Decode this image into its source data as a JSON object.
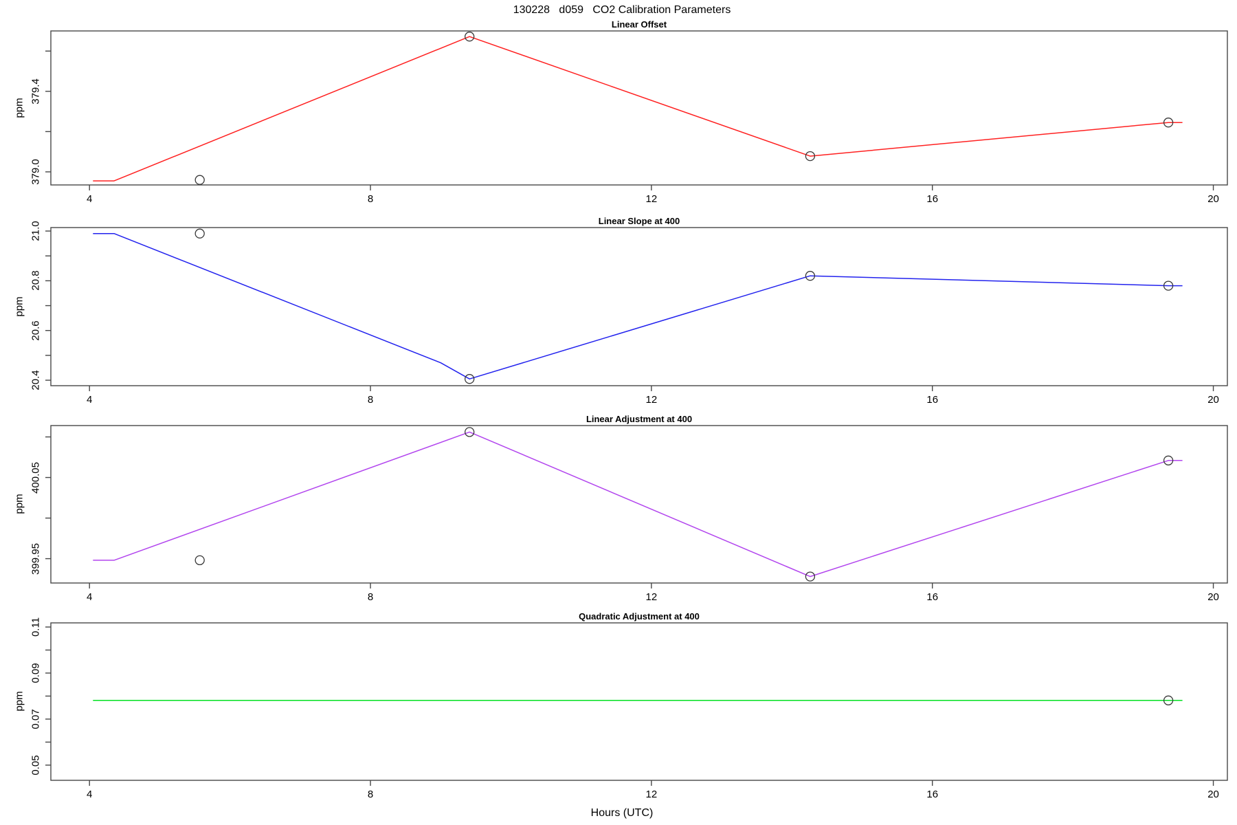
{
  "page_title": "130228   d059   CO2 Calibration Parameters",
  "chart_data": {
    "type": "line",
    "title": "130228   d059   CO2 Calibration Parameters",
    "xlabel": "Hours (UTC)",
    "x_ticks": [
      4,
      8,
      12,
      16,
      20
    ],
    "xlim": [
      3.45,
      20.2
    ],
    "grid": false,
    "legend": "none",
    "axis_color": "#474747",
    "point_color": "#383838",
    "panels": [
      {
        "title": "Linear Offset",
        "ylabel": "ppm",
        "color": "#ff2020",
        "ylim": [
          378.935,
          379.7
        ],
        "yticks": [
          {
            "value": 379.0,
            "label": "379.0"
          },
          {
            "value": 379.2,
            "label": ""
          },
          {
            "value": 379.4,
            "label": "379.4"
          },
          {
            "value": 379.6,
            "label": ""
          }
        ],
        "line": [
          [
            4.05,
            378.955
          ],
          [
            4.35,
            378.955
          ],
          [
            9.41,
            379.672
          ],
          [
            14.26,
            379.078
          ],
          [
            19.36,
            379.245
          ],
          [
            19.56,
            379.245
          ]
        ],
        "points": [
          [
            5.57,
            378.96
          ],
          [
            9.41,
            379.672
          ],
          [
            14.26,
            379.078
          ],
          [
            19.36,
            379.245
          ]
        ]
      },
      {
        "title": "Linear Slope at 400",
        "ylabel": "ppm",
        "color": "#2222ee",
        "ylim": [
          20.378,
          21.014
        ],
        "yticks": [
          {
            "value": 20.4,
            "label": "20.4"
          },
          {
            "value": 20.5,
            "label": ""
          },
          {
            "value": 20.6,
            "label": "20.6"
          },
          {
            "value": 20.7,
            "label": ""
          },
          {
            "value": 20.8,
            "label": "20.8"
          },
          {
            "value": 20.9,
            "label": ""
          },
          {
            "value": 21.0,
            "label": "21.0"
          }
        ],
        "line": [
          [
            4.05,
            20.99
          ],
          [
            4.35,
            20.99
          ],
          [
            9.0,
            20.47
          ],
          [
            9.41,
            20.405
          ],
          [
            14.26,
            20.82
          ],
          [
            19.36,
            20.78
          ],
          [
            19.56,
            20.78
          ]
        ],
        "points": [
          [
            5.57,
            20.99
          ],
          [
            9.41,
            20.405
          ],
          [
            14.26,
            20.82
          ],
          [
            19.36,
            20.78
          ]
        ]
      },
      {
        "title": "Linear Adjustment at 400",
        "ylabel": "ppm",
        "color": "#b245ee",
        "ylim": [
          399.92,
          400.114
        ],
        "yticks": [
          {
            "value": 399.95,
            "label": "399.95"
          },
          {
            "value": 400.0,
            "label": ""
          },
          {
            "value": 400.05,
            "label": "400.05"
          },
          {
            "value": 400.1,
            "label": ""
          }
        ],
        "line": [
          [
            4.05,
            399.948
          ],
          [
            4.35,
            399.948
          ],
          [
            9.41,
            400.106
          ],
          [
            14.26,
            399.928
          ],
          [
            19.36,
            400.071
          ],
          [
            19.56,
            400.071
          ]
        ],
        "points": [
          [
            5.57,
            399.948
          ],
          [
            9.41,
            400.106
          ],
          [
            14.26,
            399.928
          ],
          [
            19.36,
            400.071
          ]
        ]
      },
      {
        "title": "Quadratic Adjustment at 400",
        "ylabel": "ppm",
        "color": "#00e020",
        "ylim": [
          0.0434,
          0.1118
        ],
        "yticks": [
          {
            "value": 0.05,
            "label": "0.05"
          },
          {
            "value": 0.06,
            "label": ""
          },
          {
            "value": 0.07,
            "label": "0.07"
          },
          {
            "value": 0.08,
            "label": ""
          },
          {
            "value": 0.09,
            "label": "0.09"
          },
          {
            "value": 0.1,
            "label": ""
          },
          {
            "value": 0.11,
            "label": "0.11"
          }
        ],
        "line": [
          [
            4.05,
            0.0781
          ],
          [
            19.56,
            0.0781
          ]
        ],
        "points": [
          [
            19.36,
            0.0781
          ]
        ]
      }
    ]
  }
}
